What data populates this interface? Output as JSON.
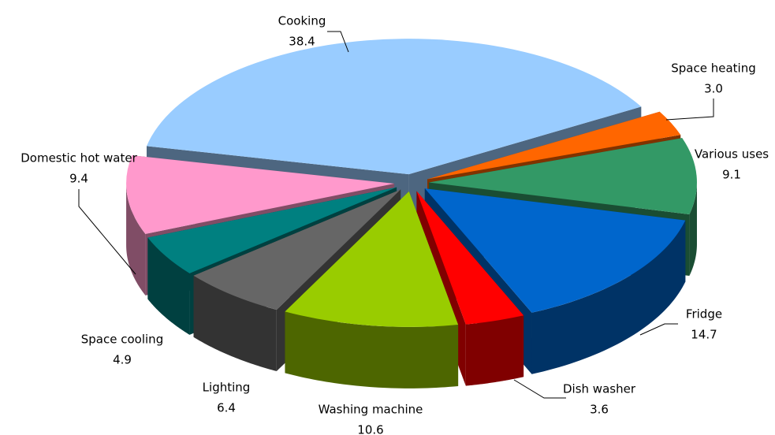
{
  "chart_data": {
    "type": "pie",
    "categories": [
      "Cooking",
      "Space heating",
      "Various uses",
      "Fridge",
      "Dish washer",
      "Washing machine",
      "Lighting",
      "Space cooling",
      "Domestic hot water"
    ],
    "values": [
      38.4,
      3.0,
      9.1,
      14.7,
      3.6,
      10.6,
      6.4,
      4.9,
      9.4
    ],
    "value_labels": [
      "38.4",
      "3.0",
      "9.1",
      "14.7",
      "3.6",
      "10.6",
      "6.4",
      "4.9",
      "9.4"
    ],
    "colors": [
      "#99ccff",
      "#ff6600",
      "#339966",
      "#0066cc",
      "#ff0000",
      "#99cc00",
      "#666666",
      "#008080",
      "#ff99cc"
    ]
  }
}
